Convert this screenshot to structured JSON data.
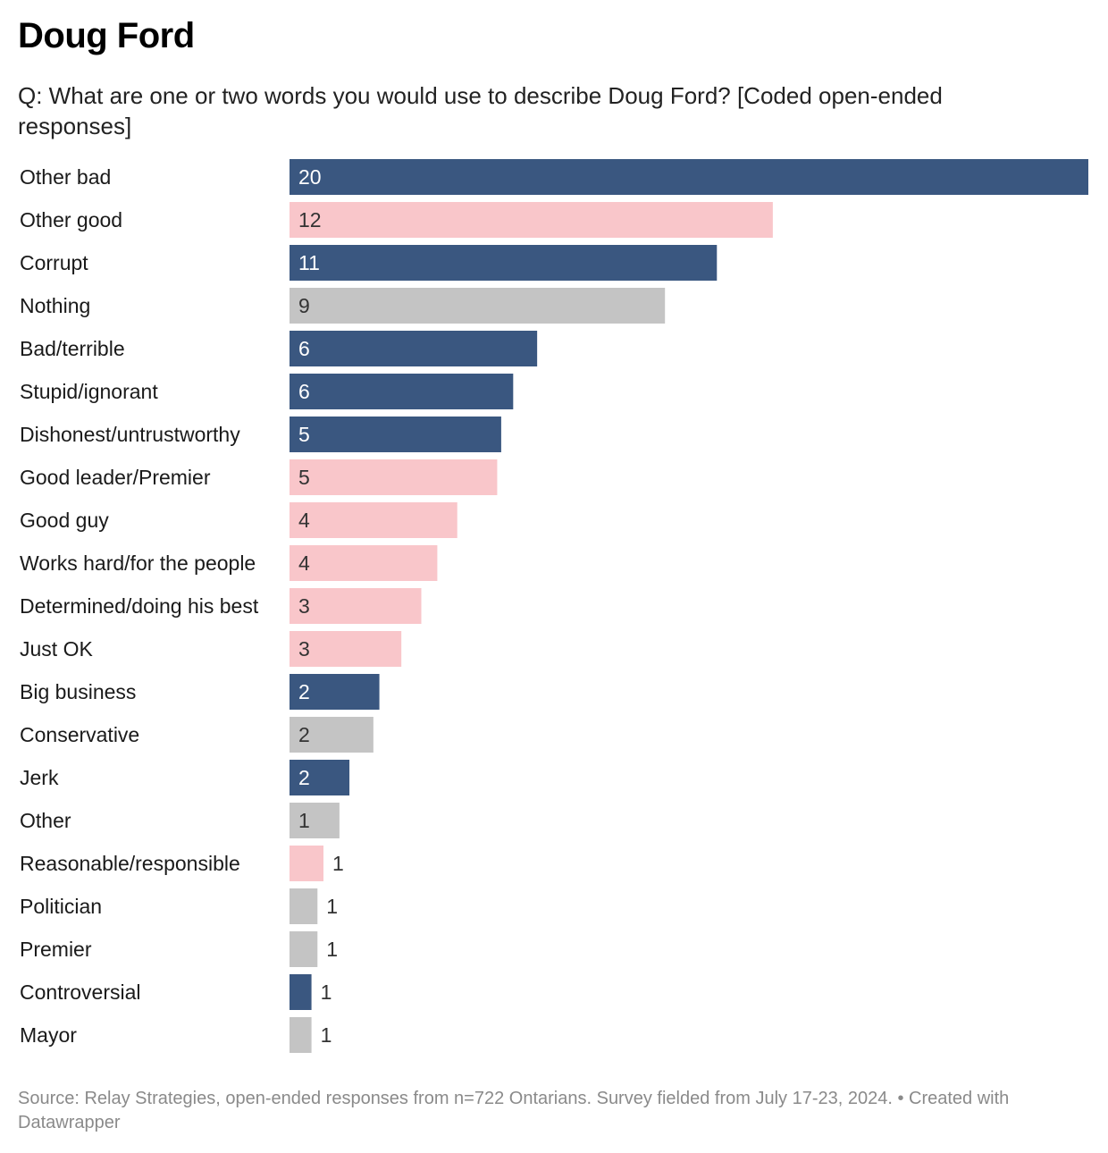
{
  "title": "Doug Ford",
  "subtitle": "Q: What are one or two words you would use to describe Doug Ford? [Coded open-ended responses]",
  "footer": {
    "source": "Source: Relay Strategies, open-ended responses from n=722 Ontarians. Survey fielded from July 17-23, 2024.",
    "separator": " • ",
    "credit": "Created with Datawrapper"
  },
  "colors": {
    "negative": "#3a5780",
    "positive": "#f9c6ca",
    "neutral": "#c4c4c4"
  },
  "chart_data": {
    "type": "bar",
    "orientation": "horizontal",
    "xlim": [
      0,
      20
    ],
    "grid": false,
    "categories": [
      "Other bad",
      "Other good",
      "Corrupt",
      "Nothing",
      "Bad/terrible",
      "Stupid/ignorant",
      "Dishonest/untrustworthy",
      "Good leader/Premier",
      "Good guy",
      "Works hard/for the people",
      "Determined/doing his best",
      "Just OK",
      "Big business",
      "Conservative",
      "Jerk",
      "Other",
      "Reasonable/responsible",
      "Politician",
      "Premier",
      "Controversial",
      "Mayor"
    ],
    "values": [
      20,
      12.1,
      10.7,
      9.4,
      6.2,
      5.6,
      5.3,
      5.2,
      4.2,
      3.7,
      3.3,
      2.8,
      2.25,
      2.1,
      1.5,
      1.25,
      0.85,
      0.7,
      0.7,
      0.55,
      0.55
    ],
    "labels": [
      "20",
      "12",
      "11",
      "9",
      "6",
      "6",
      "5",
      "5",
      "4",
      "4",
      "3",
      "3",
      "2",
      "2",
      "2",
      "1",
      "1",
      "1",
      "1",
      "1",
      "1"
    ],
    "sentiment": [
      "negative",
      "positive",
      "negative",
      "neutral",
      "negative",
      "negative",
      "negative",
      "positive",
      "positive",
      "positive",
      "positive",
      "positive",
      "negative",
      "neutral",
      "negative",
      "neutral",
      "positive",
      "neutral",
      "neutral",
      "negative",
      "neutral"
    ]
  }
}
